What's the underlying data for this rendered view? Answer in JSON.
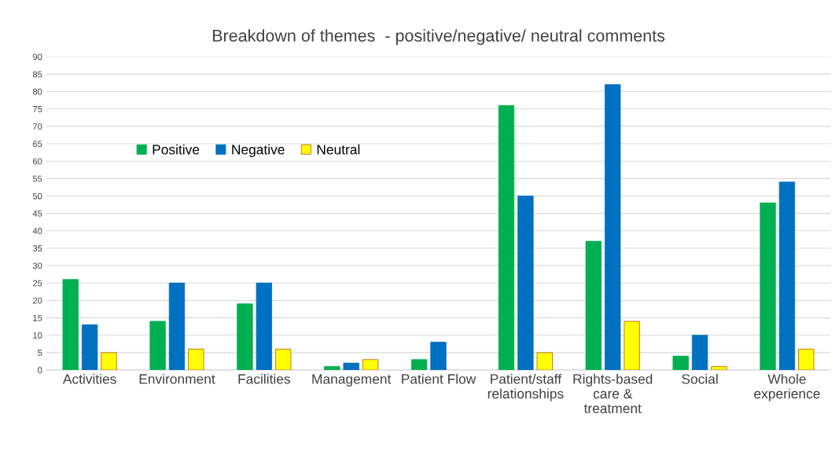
{
  "chart_data": {
    "type": "bar",
    "title": "Breakdown of themes  - positive/negative/ neutral comments",
    "categories": [
      "Activities",
      "Environment",
      "Facilities",
      "Management",
      "Patient Flow",
      "Patient/staff\nrelationships",
      "Rights-based\ncare &\ntreatment",
      "Social",
      "Whole\nexperience"
    ],
    "series": [
      {
        "name": "Positive",
        "color": "#00b050",
        "values": [
          26,
          14,
          19,
          1,
          3,
          76,
          37,
          4,
          48
        ]
      },
      {
        "name": "Negative",
        "color": "#0070c0",
        "values": [
          13,
          25,
          25,
          2,
          8,
          50,
          82,
          10,
          54
        ]
      },
      {
        "name": "Neutral",
        "color": "#ffff00",
        "values": [
          5,
          6,
          6,
          3,
          null,
          5,
          14,
          1,
          6
        ]
      }
    ],
    "ylim": [
      0,
      90
    ],
    "yticks": [
      0,
      5,
      10,
      15,
      20,
      25,
      30,
      35,
      40,
      45,
      50,
      55,
      60,
      65,
      70,
      75,
      80,
      85,
      90
    ],
    "grid": "y",
    "legend": "top left"
  }
}
